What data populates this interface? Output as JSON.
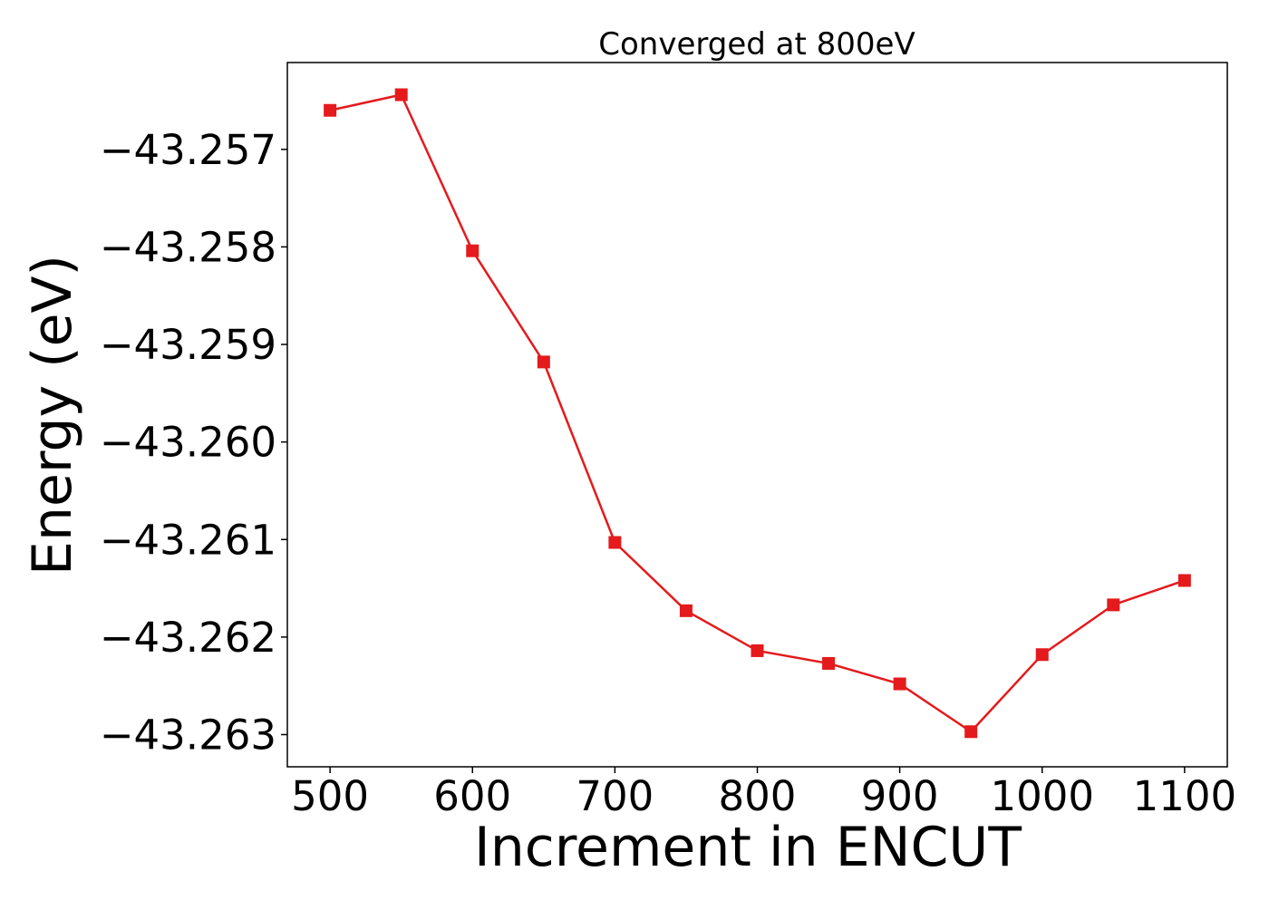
{
  "chart_data": {
    "type": "line",
    "title": "Converged at 800eV",
    "xlabel": "Increment in ENCUT",
    "ylabel": "Energy (eV)",
    "x": [
      500,
      550,
      600,
      650,
      700,
      750,
      800,
      850,
      900,
      950,
      1000,
      1050,
      1100
    ],
    "series": [
      {
        "values": [
          -43.2566,
          -43.25644,
          -43.25804,
          -43.25918,
          -43.26103,
          -43.26173,
          -43.26214,
          -43.26227,
          -43.26248,
          -43.26297,
          -43.26218,
          -43.26167,
          -43.26142
        ],
        "color": "#e41a1c",
        "marker": "square"
      }
    ],
    "xlim": [
      470,
      1130
    ],
    "ylim": [
      -43.26333,
      -43.25611
    ],
    "xticks": [
      500,
      600,
      700,
      800,
      900,
      1000,
      1100
    ],
    "xtick_labels": [
      "500",
      "600",
      "700",
      "800",
      "900",
      "1000",
      "1100"
    ],
    "yticks": [
      -43.257,
      -43.258,
      -43.259,
      -43.26,
      -43.261,
      -43.262,
      -43.263
    ],
    "ytick_labels": [
      "−43.257",
      "−43.258",
      "−43.259",
      "−43.260",
      "−43.261",
      "−43.262",
      "−43.263"
    ],
    "grid": false,
    "legend": "none"
  }
}
